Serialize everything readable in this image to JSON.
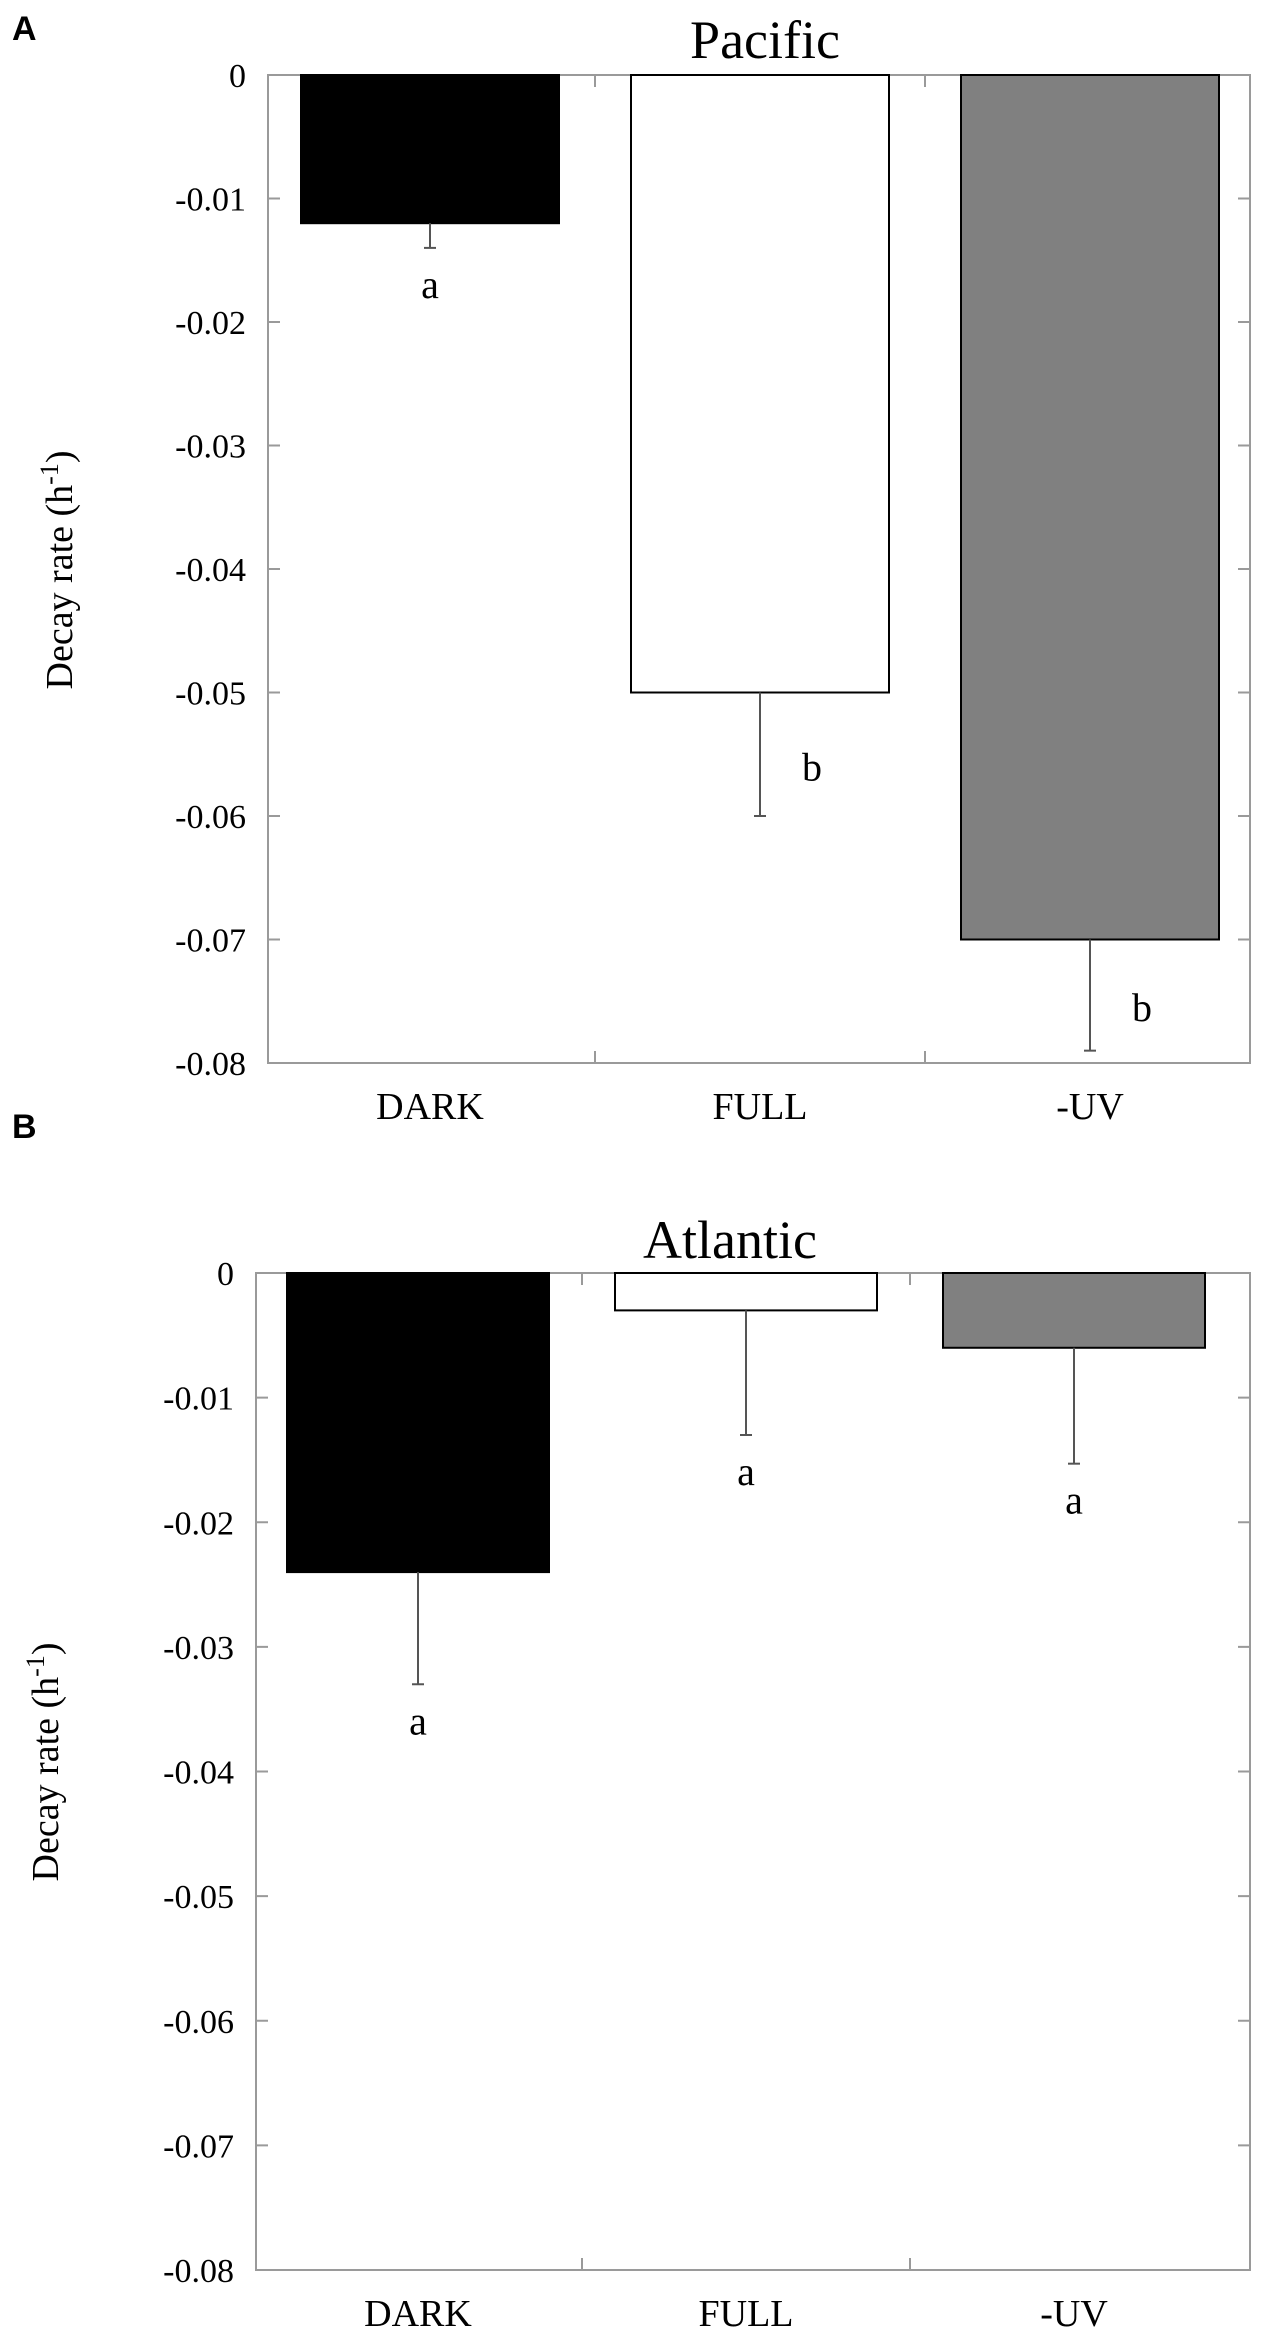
{
  "chart_data": [
    {
      "type": "bar",
      "panel": "A",
      "title": "Pacific",
      "xlabel": "",
      "ylabel": "Decay rate (h",
      "ylabel_sup": "-1",
      "ylabel_close": ")",
      "categories": [
        "DARK",
        "FULL",
        "-UV"
      ],
      "values": [
        -0.012,
        -0.05,
        -0.07
      ],
      "errors": [
        0.002,
        0.01,
        0.009
      ],
      "significance": [
        "a",
        "b",
        "b"
      ],
      "colors": [
        "#000000",
        "#ffffff",
        "#808080"
      ],
      "ylim": [
        -0.08,
        0
      ],
      "yticks": [
        "0",
        "-0.01",
        "-0.02",
        "-0.03",
        "-0.04",
        "-0.05",
        "-0.06",
        "-0.07",
        "-0.08"
      ],
      "grid": false
    },
    {
      "type": "bar",
      "panel": "B",
      "title": "Atlantic",
      "xlabel": "",
      "ylabel": "Decay rate (h",
      "ylabel_sup": "-1",
      "ylabel_close": ")",
      "categories": [
        "DARK",
        "FULL",
        "-UV"
      ],
      "values": [
        -0.024,
        -0.003,
        -0.006
      ],
      "errors": [
        0.009,
        0.01,
        0.0093
      ],
      "significance": [
        "a",
        "a",
        "a"
      ],
      "colors": [
        "#000000",
        "#ffffff",
        "#808080"
      ],
      "ylim": [
        -0.08,
        0
      ],
      "yticks": [
        "0",
        "-0.01",
        "-0.02",
        "-0.03",
        "-0.04",
        "-0.05",
        "-0.06",
        "-0.07",
        "-0.08"
      ],
      "grid": false
    }
  ]
}
